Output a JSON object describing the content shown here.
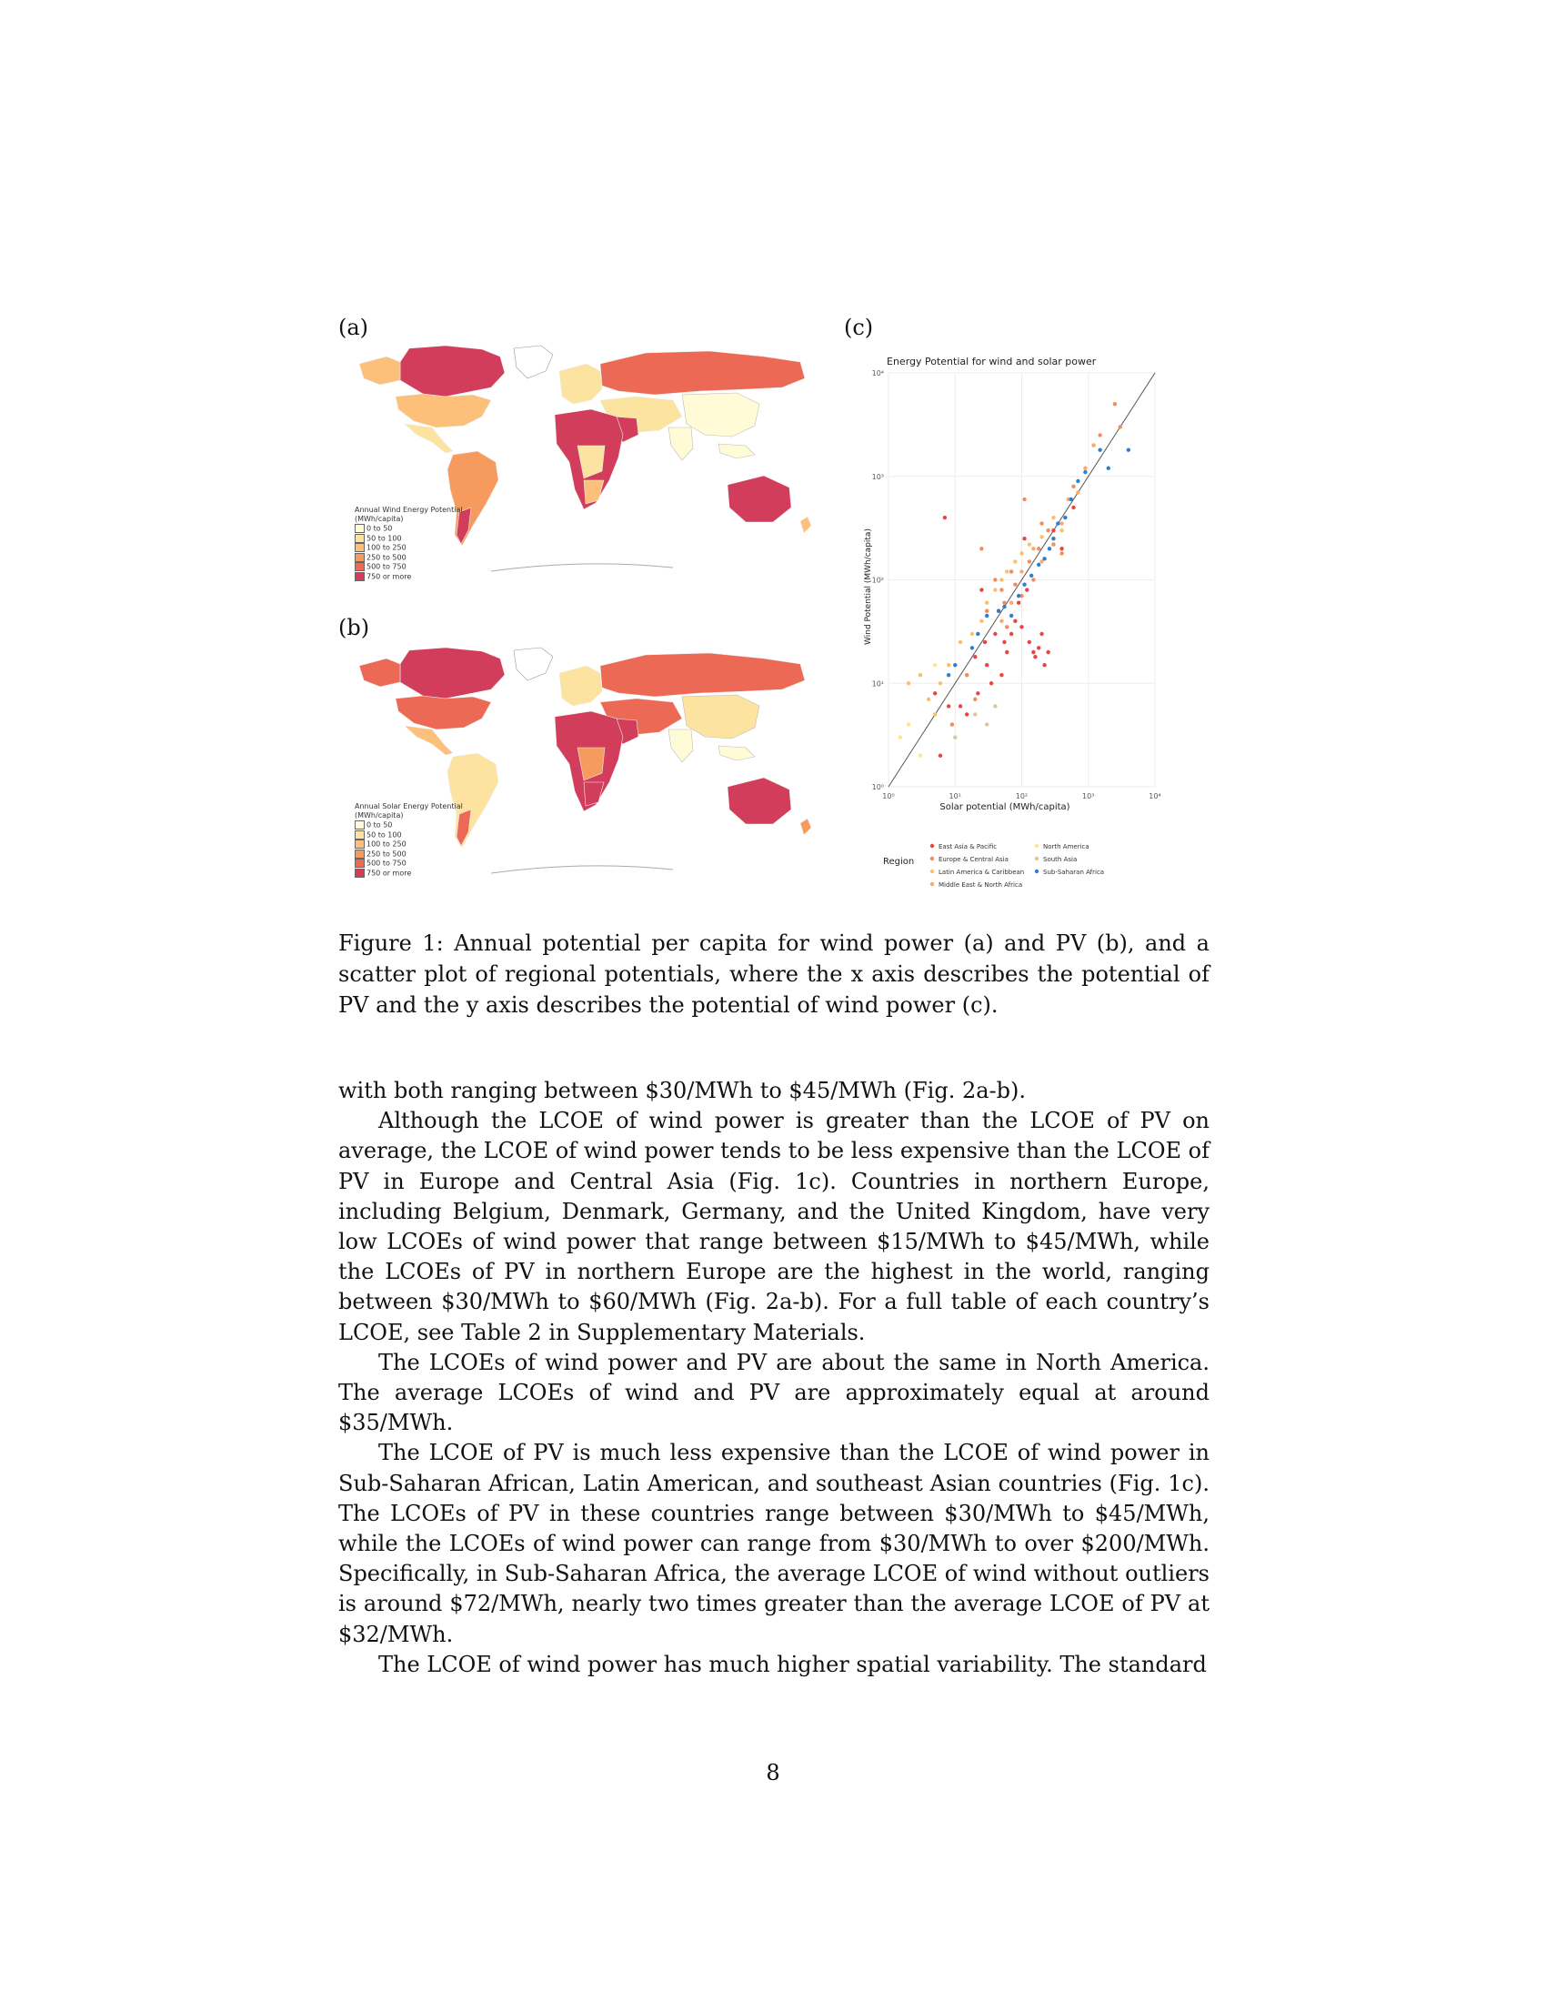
{
  "figure": {
    "panel_a_label": "(a)",
    "panel_b_label": "(b)",
    "panel_c_label": "(c)",
    "map_a": {
      "legend_title_1": "Annual Wind Energy Potential",
      "legend_title_2": "(MWh/capita)",
      "legend_items": [
        "0 to 50",
        "50 to 100",
        "100 to 250",
        "250 to 500",
        "500 to 750",
        "750 or more"
      ],
      "legend_colors": [
        "#fffbd6",
        "#fde3a0",
        "#fcc07a",
        "#f79a5e",
        "#ec6a55",
        "#d23d5c"
      ]
    },
    "map_b": {
      "legend_title_1": "Annual Solar Energy Potential",
      "legend_title_2": "(MWh/capita)",
      "legend_items": [
        "0 to 50",
        "50 to 100",
        "100 to 250",
        "250 to 500",
        "500 to 750",
        "750 or more"
      ],
      "legend_colors": [
        "#fffbd6",
        "#fde3a0",
        "#fcc07a",
        "#f79a5e",
        "#ec6a55",
        "#d23d5c"
      ]
    },
    "caption": "Figure 1: Annual potential per capita for wind power (a) and PV (b), and a scatter plot of regional potentials, where the x axis describes the potential of PV and the y axis describes the potential of wind power (c)."
  },
  "chart_data": {
    "type": "scatter",
    "title": "Energy Potential for wind and solar power",
    "xlabel": "Solar potential (MWh/capita)",
    "ylabel": "Wind Potential (MWh/capita)",
    "x_scale": "log",
    "y_scale": "log",
    "xlim": [
      1,
      10000
    ],
    "ylim": [
      1,
      10000
    ],
    "x_ticks": [
      "10⁰",
      "10¹",
      "10²",
      "10³",
      "10⁴"
    ],
    "y_ticks": [
      "10⁰",
      "10¹",
      "10²",
      "10³",
      "10⁴"
    ],
    "reference_line": "y = x",
    "grid": true,
    "legend_title": "Region",
    "legend_position": "bottom",
    "series": [
      {
        "name": "East Asia & Pacific",
        "color": "#e8453c",
        "points": [
          [
            6,
            2
          ],
          [
            7,
            400
          ],
          [
            5,
            8
          ],
          [
            8,
            6
          ],
          [
            12,
            6
          ],
          [
            15,
            5
          ],
          [
            20,
            18
          ],
          [
            22,
            8
          ],
          [
            25,
            80
          ],
          [
            28,
            25
          ],
          [
            30,
            15
          ],
          [
            35,
            10
          ],
          [
            40,
            30
          ],
          [
            45,
            50
          ],
          [
            50,
            12
          ],
          [
            55,
            25
          ],
          [
            60,
            20
          ],
          [
            70,
            30
          ],
          [
            80,
            40
          ],
          [
            90,
            60
          ],
          [
            100,
            35
          ],
          [
            110,
            250
          ],
          [
            120,
            80
          ],
          [
            130,
            25
          ],
          [
            150,
            20
          ],
          [
            160,
            18
          ],
          [
            180,
            22
          ],
          [
            200,
            30
          ],
          [
            220,
            15
          ],
          [
            250,
            20
          ],
          [
            300,
            300
          ],
          [
            400,
            200
          ],
          [
            600,
            500
          ]
        ]
      },
      {
        "name": "Europe & Central Asia",
        "color": "#f28c5a",
        "points": [
          [
            9,
            4
          ],
          [
            15,
            12
          ],
          [
            20,
            7
          ],
          [
            25,
            200
          ],
          [
            30,
            50
          ],
          [
            40,
            100
          ],
          [
            50,
            80
          ],
          [
            55,
            60
          ],
          [
            60,
            35
          ],
          [
            70,
            120
          ],
          [
            80,
            90
          ],
          [
            100,
            70
          ],
          [
            110,
            600
          ],
          [
            130,
            150
          ],
          [
            150,
            100
          ],
          [
            180,
            200
          ],
          [
            200,
            350
          ],
          [
            250,
            300
          ],
          [
            300,
            220
          ],
          [
            400,
            180
          ],
          [
            600,
            800
          ],
          [
            1500,
            2500
          ],
          [
            2500,
            5000
          ],
          [
            3000,
            3000
          ]
        ]
      },
      {
        "name": "Latin America & Caribbean",
        "color": "#fbbf6b",
        "points": [
          [
            2,
            10
          ],
          [
            3,
            12
          ],
          [
            4,
            7
          ],
          [
            5,
            5
          ],
          [
            6,
            10
          ],
          [
            8,
            15
          ],
          [
            12,
            25
          ],
          [
            18,
            30
          ],
          [
            25,
            40
          ],
          [
            30,
            60
          ],
          [
            40,
            80
          ],
          [
            50,
            100
          ],
          [
            60,
            120
          ],
          [
            80,
            150
          ],
          [
            100,
            180
          ],
          [
            130,
            220
          ],
          [
            200,
            260
          ],
          [
            300,
            400
          ],
          [
            400,
            300
          ]
        ]
      },
      {
        "name": "Middle East & North Africa",
        "color": "#f9a96e",
        "points": [
          [
            50,
            40
          ],
          [
            70,
            60
          ],
          [
            100,
            120
          ],
          [
            150,
            200
          ],
          [
            200,
            150
          ],
          [
            300,
            250
          ],
          [
            400,
            350
          ],
          [
            500,
            600
          ],
          [
            700,
            700
          ],
          [
            900,
            1200
          ],
          [
            1200,
            2000
          ]
        ]
      },
      {
        "name": "North America",
        "color": "#fde68a",
        "points": [
          [
            1.5,
            3
          ],
          [
            2,
            4
          ],
          [
            3,
            2
          ],
          [
            5,
            15
          ]
        ]
      },
      {
        "name": "South Asia",
        "color": "#d9c7a0",
        "points": [
          [
            10,
            3
          ],
          [
            20,
            5
          ],
          [
            30,
            4
          ],
          [
            40,
            6
          ]
        ]
      },
      {
        "name": "Sub-Saharan Africa",
        "color": "#2f7fcf",
        "points": [
          [
            8,
            12
          ],
          [
            10,
            15
          ],
          [
            18,
            22
          ],
          [
            22,
            30
          ],
          [
            30,
            45
          ],
          [
            45,
            50
          ],
          [
            55,
            55
          ],
          [
            70,
            45
          ],
          [
            90,
            70
          ],
          [
            110,
            90
          ],
          [
            140,
            110
          ],
          [
            180,
            140
          ],
          [
            220,
            160
          ],
          [
            260,
            200
          ],
          [
            300,
            250
          ],
          [
            350,
            350
          ],
          [
            450,
            400
          ],
          [
            550,
            600
          ],
          [
            700,
            900
          ],
          [
            900,
            1100
          ],
          [
            1500,
            1800
          ],
          [
            2000,
            1200
          ],
          [
            4000,
            1800
          ]
        ]
      }
    ]
  },
  "body": {
    "p1": "with both ranging between $30/MWh to $45/MWh (Fig. 2a-b).",
    "p2": "Although the LCOE of wind power is greater than the LCOE of PV on average, the LCOE of wind power tends to be less expensive than the LCOE of PV in Europe and Central Asia (Fig. 1c). Countries in northern Europe, including Belgium, Denmark, Germany, and the United Kingdom, have very low LCOEs of wind power that range between $15/MWh to $45/MWh, while the LCOEs of PV in northern Europe are the highest in the world, ranging between $30/MWh to $60/MWh (Fig. 2a-b). For a full table of each country’s LCOE, see Table 2 in Supplementary Materials.",
    "p3": "The LCOEs of wind power and PV are about the same in North America. The average LCOEs of wind and PV are approximately equal at around $35/MWh.",
    "p4": "The LCOE of PV is much less expensive than the LCOE of wind power in Sub-Saharan African, Latin American, and southeast Asian countries (Fig. 1c). The LCOEs of PV in these countries range between $30/MWh to $45/MWh, while the LCOEs of wind power can range from $30/MWh to over $200/MWh. Specifically, in Sub-Saharan Africa, the average LCOE of wind without outliers is around $72/MWh, nearly two times greater than the average LCOE of PV at $32/MWh.",
    "p5": "The LCOE of wind power has much higher spatial variability. The standard"
  },
  "page_number": "8"
}
